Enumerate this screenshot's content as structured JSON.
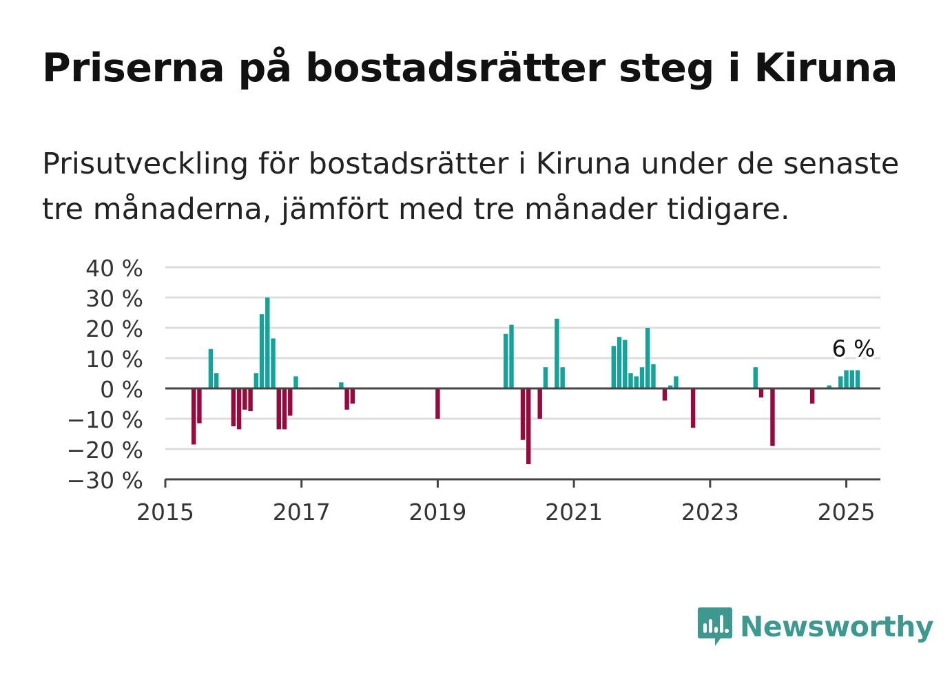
{
  "title": "Priserna på bostadsrätter steg i Kiruna",
  "subtitle": "Prisutveckling för bostadsrätter i Kiruna under de senaste tre månaderna, jämfört med tre månader tidigare.",
  "brand": {
    "name": "Newsworthy",
    "color": "#3d9990",
    "icon": "bar-chart-speech-bubble-icon"
  },
  "colors": {
    "positive": "#13a39a",
    "negative": "#960a3e",
    "grid": "#dddddd",
    "axis": "#444444",
    "text": "#333333"
  },
  "chart_data": {
    "type": "bar",
    "title": "Priserna på bostadsrätter steg i Kiruna",
    "xlabel": "",
    "ylabel": "",
    "y_unit": "%",
    "ylim": [
      -30,
      40
    ],
    "yticks": [
      -30,
      -20,
      -10,
      0,
      10,
      20,
      30,
      40
    ],
    "ytick_labels": [
      "−30 %",
      "−20 %",
      "−10 %",
      "0 %",
      "10 %",
      "20 %",
      "30 %",
      "40 %"
    ],
    "xlim": [
      "2015-01",
      "2025-07"
    ],
    "xticks": [
      "2015",
      "2017",
      "2019",
      "2021",
      "2023",
      "2025"
    ],
    "grid": true,
    "annotation": {
      "label": "6 %",
      "x": "2025-03",
      "value": 6
    },
    "x": [
      "2015-06",
      "2015-07",
      "2015-09",
      "2015-10",
      "2016-01",
      "2016-02",
      "2016-03",
      "2016-04",
      "2016-05",
      "2016-06",
      "2016-07",
      "2016-08",
      "2016-09",
      "2016-10",
      "2016-11",
      "2016-12",
      "2017-08",
      "2017-09",
      "2017-10",
      "2019-01",
      "2020-01",
      "2020-02",
      "2020-04",
      "2020-05",
      "2020-07",
      "2020-08",
      "2020-10",
      "2020-11",
      "2021-08",
      "2021-09",
      "2021-10",
      "2021-11",
      "2021-12",
      "2022-01",
      "2022-02",
      "2022-03",
      "2022-05",
      "2022-06",
      "2022-07",
      "2022-10",
      "2023-09",
      "2023-10",
      "2023-12",
      "2024-07",
      "2024-10",
      "2024-12",
      "2025-01",
      "2025-02",
      "2025-03"
    ],
    "values": [
      -18.5,
      -11.5,
      13,
      5,
      -12.5,
      -13.5,
      -7,
      -7.5,
      5,
      24.5,
      30,
      16.5,
      -13.5,
      -13.5,
      -9,
      4,
      2,
      -7,
      -5,
      -10,
      18,
      21,
      -17,
      -25,
      -10,
      7,
      23,
      7,
      14,
      17,
      16,
      5,
      4,
      7,
      20,
      8,
      -4,
      1,
      4,
      -13,
      7,
      -3,
      -19,
      -5,
      1,
      4,
      6,
      6,
      6
    ]
  }
}
